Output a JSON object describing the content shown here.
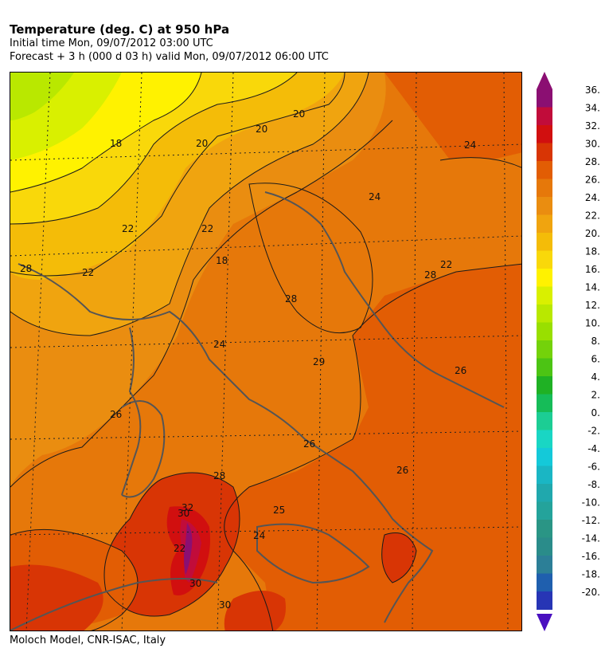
{
  "header": {
    "title": "Temperature (deg. C) at 950 hPa",
    "initial_time": "Initial time  Mon, 09/07/2012  03:00 UTC",
    "forecast": "Forecast  +   3 h  (000 d 03 h)  valid Mon, 09/07/2012 06:00 UTC"
  },
  "footer": {
    "credit": "Moloch Model, CNR-ISAC, Italy"
  },
  "map": {
    "contour_labels": [
      "22",
      "20",
      "18",
      "20",
      "20",
      "24",
      "24",
      "22",
      "18",
      "22",
      "22",
      "28",
      "28",
      "26",
      "26",
      "24",
      "29",
      "30",
      "26",
      "25",
      "24",
      "22",
      "28",
      "26",
      "28",
      "30",
      "32",
      "30"
    ]
  },
  "legend": {
    "levels": [
      "36.",
      "34.",
      "32.",
      "30.",
      "28.",
      "26.",
      "24.",
      "22.",
      "20.",
      "18.",
      "16.",
      "14.",
      "12.",
      "10.",
      "8.",
      "6.",
      "4.",
      "2.",
      "0.",
      "-2.",
      "-4.",
      "-6.",
      "-8.",
      "-10.",
      "-12.",
      "-14.",
      "-16.",
      "-18.",
      "-20."
    ],
    "colors": [
      "#8b0f72",
      "#c10c3a",
      "#d10f0f",
      "#d83505",
      "#e25d04",
      "#e6780a",
      "#ea8d10",
      "#f0a40f",
      "#f4bc08",
      "#f9d80a",
      "#fff200",
      "#d9f000",
      "#b9e800",
      "#99df00",
      "#74d20a",
      "#4cc414",
      "#1fb124",
      "#16bc58",
      "#1ccd94",
      "#19d6c4",
      "#14c9d9",
      "#1ab6c4",
      "#20a8ad",
      "#24a39b",
      "#2a9585",
      "#2a8c8a",
      "#2c7f97",
      "#1f5fae",
      "#2735b5"
    ],
    "arrow_top_color": "#8b0f72",
    "arrow_bottom_color": "#4a10c0"
  }
}
